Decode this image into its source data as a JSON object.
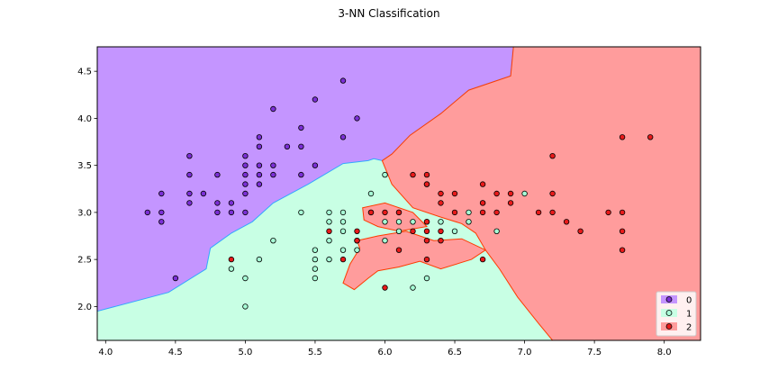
{
  "chart_data": {
    "type": "scatter",
    "title": "3-NN Classification",
    "xlabel": "",
    "ylabel": "",
    "xlim": [
      3.94,
      8.26
    ],
    "ylim": [
      1.64,
      4.76
    ],
    "xticks": [
      "4.0",
      "4.5",
      "5.0",
      "5.5",
      "6.0",
      "6.5",
      "7.0",
      "7.5",
      "8.0"
    ],
    "yticks": [
      "2.0",
      "2.5",
      "3.0",
      "3.5",
      "4.0",
      "4.5"
    ],
    "grid": false,
    "legend_position": "bottom-right",
    "regions": [
      {
        "class": "0",
        "color": "#c495ff",
        "boundary": [
          [
            3.94,
            4.76
          ],
          [
            6.92,
            4.76
          ],
          [
            6.9,
            4.45
          ],
          [
            6.6,
            4.3
          ],
          [
            6.4,
            4.05
          ],
          [
            6.18,
            3.82
          ],
          [
            6.05,
            3.62
          ],
          [
            5.98,
            3.55
          ],
          [
            5.92,
            3.57
          ],
          [
            5.88,
            3.55
          ],
          [
            5.7,
            3.52
          ],
          [
            5.45,
            3.3
          ],
          [
            5.2,
            3.1
          ],
          [
            5.05,
            2.9
          ],
          [
            4.9,
            2.78
          ],
          [
            4.75,
            2.62
          ],
          [
            4.72,
            2.4
          ],
          [
            4.45,
            2.15
          ],
          [
            3.94,
            1.95
          ]
        ]
      },
      {
        "class": "2",
        "color": "#ff9c9c",
        "boundary": [
          [
            6.92,
            4.76
          ],
          [
            8.26,
            4.76
          ],
          [
            8.26,
            1.64
          ],
          [
            7.2,
            1.64
          ],
          [
            7.1,
            1.82
          ],
          [
            6.95,
            2.1
          ],
          [
            6.82,
            2.4
          ],
          [
            6.72,
            2.6
          ],
          [
            6.65,
            2.78
          ],
          [
            6.55,
            2.88
          ],
          [
            6.4,
            2.95
          ],
          [
            6.2,
            3.05
          ],
          [
            6.05,
            3.3
          ],
          [
            5.98,
            3.55
          ],
          [
            6.05,
            3.62
          ],
          [
            6.18,
            3.82
          ],
          [
            6.4,
            4.05
          ],
          [
            6.6,
            4.3
          ],
          [
            6.9,
            4.45
          ]
        ]
      },
      {
        "class": "2",
        "color": "#ff9c9c",
        "boundary": [
          [
            5.8,
            2.7
          ],
          [
            5.95,
            2.75
          ],
          [
            6.15,
            2.8
          ],
          [
            6.35,
            2.7
          ],
          [
            6.55,
            2.72
          ],
          [
            6.72,
            2.6
          ],
          [
            6.62,
            2.5
          ],
          [
            6.4,
            2.4
          ],
          [
            6.25,
            2.48
          ],
          [
            6.1,
            2.42
          ],
          [
            5.95,
            2.38
          ],
          [
            5.88,
            2.3
          ],
          [
            5.78,
            2.18
          ],
          [
            5.7,
            2.25
          ],
          [
            5.75,
            2.45
          ],
          [
            5.82,
            2.62
          ]
        ]
      },
      {
        "class": "2",
        "color": "#ff9c9c",
        "boundary": [
          [
            5.84,
            3.05
          ],
          [
            6.0,
            3.1
          ],
          [
            6.2,
            3.0
          ],
          [
            6.3,
            2.85
          ],
          [
            6.1,
            2.8
          ],
          [
            5.95,
            2.85
          ],
          [
            5.85,
            2.92
          ]
        ]
      }
    ],
    "series": [
      {
        "name": "0",
        "color": "#7b2fd6",
        "points": [
          [
            4.3,
            3.0
          ],
          [
            4.4,
            3.2
          ],
          [
            4.4,
            3.0
          ],
          [
            4.4,
            2.9
          ],
          [
            4.5,
            2.3
          ],
          [
            4.6,
            3.6
          ],
          [
            4.6,
            3.4
          ],
          [
            4.6,
            3.2
          ],
          [
            4.6,
            3.1
          ],
          [
            4.7,
            3.2
          ],
          [
            4.8,
            3.4
          ],
          [
            4.8,
            3.1
          ],
          [
            4.8,
            3.0
          ],
          [
            4.9,
            3.1
          ],
          [
            4.9,
            3.0
          ],
          [
            5.0,
            3.6
          ],
          [
            5.0,
            3.5
          ],
          [
            5.0,
            3.4
          ],
          [
            5.0,
            3.3
          ],
          [
            5.0,
            3.2
          ],
          [
            5.0,
            3.0
          ],
          [
            5.1,
            3.8
          ],
          [
            5.1,
            3.7
          ],
          [
            5.1,
            3.5
          ],
          [
            5.1,
            3.4
          ],
          [
            5.1,
            3.3
          ],
          [
            5.2,
            4.1
          ],
          [
            5.2,
            3.5
          ],
          [
            5.2,
            3.4
          ],
          [
            5.3,
            3.7
          ],
          [
            5.4,
            3.9
          ],
          [
            5.4,
            3.7
          ],
          [
            5.4,
            3.4
          ],
          [
            5.5,
            4.2
          ],
          [
            5.5,
            3.5
          ],
          [
            5.7,
            4.4
          ],
          [
            5.7,
            3.8
          ],
          [
            5.8,
            4.0
          ]
        ]
      },
      {
        "name": "1",
        "color": "#a7ffd6",
        "points": [
          [
            4.9,
            2.4
          ],
          [
            5.0,
            2.3
          ],
          [
            5.0,
            2.0
          ],
          [
            5.1,
            2.5
          ],
          [
            5.2,
            2.7
          ],
          [
            5.4,
            3.0
          ],
          [
            5.5,
            2.6
          ],
          [
            5.5,
            2.5
          ],
          [
            5.5,
            2.4
          ],
          [
            5.5,
            2.3
          ],
          [
            5.6,
            3.0
          ],
          [
            5.6,
            2.9
          ],
          [
            5.6,
            2.7
          ],
          [
            5.6,
            2.5
          ],
          [
            5.7,
            3.0
          ],
          [
            5.7,
            2.9
          ],
          [
            5.7,
            2.8
          ],
          [
            5.7,
            2.6
          ],
          [
            5.8,
            2.7
          ],
          [
            5.8,
            2.6
          ],
          [
            5.9,
            3.2
          ],
          [
            5.9,
            3.0
          ],
          [
            6.0,
            3.4
          ],
          [
            6.0,
            2.9
          ],
          [
            6.0,
            2.7
          ],
          [
            6.1,
            3.0
          ],
          [
            6.1,
            2.9
          ],
          [
            6.1,
            2.8
          ],
          [
            6.2,
            2.9
          ],
          [
            6.2,
            2.2
          ],
          [
            6.3,
            3.3
          ],
          [
            6.3,
            2.9
          ],
          [
            6.3,
            2.3
          ],
          [
            6.4,
            2.9
          ],
          [
            6.5,
            2.8
          ],
          [
            6.6,
            3.0
          ],
          [
            6.6,
            2.9
          ],
          [
            6.7,
            3.1
          ],
          [
            6.8,
            2.8
          ],
          [
            7.0,
            3.2
          ]
        ]
      },
      {
        "name": "2",
        "color": "#e81a1a",
        "points": [
          [
            4.9,
            2.5
          ],
          [
            5.6,
            2.8
          ],
          [
            5.7,
            2.5
          ],
          [
            5.8,
            2.8
          ],
          [
            5.8,
            2.7
          ],
          [
            5.9,
            3.0
          ],
          [
            6.0,
            3.0
          ],
          [
            6.0,
            2.2
          ],
          [
            6.1,
            3.0
          ],
          [
            6.1,
            2.6
          ],
          [
            6.2,
            3.4
          ],
          [
            6.2,
            2.8
          ],
          [
            6.3,
            3.4
          ],
          [
            6.3,
            3.3
          ],
          [
            6.3,
            2.9
          ],
          [
            6.3,
            2.8
          ],
          [
            6.3,
            2.7
          ],
          [
            6.3,
            2.5
          ],
          [
            6.4,
            3.2
          ],
          [
            6.4,
            3.1
          ],
          [
            6.4,
            2.8
          ],
          [
            6.4,
            2.7
          ],
          [
            6.5,
            3.2
          ],
          [
            6.5,
            3.0
          ],
          [
            6.7,
            3.3
          ],
          [
            6.7,
            3.1
          ],
          [
            6.7,
            3.0
          ],
          [
            6.7,
            2.5
          ],
          [
            6.8,
            3.2
          ],
          [
            6.8,
            3.0
          ],
          [
            6.9,
            3.2
          ],
          [
            6.9,
            3.1
          ],
          [
            7.1,
            3.0
          ],
          [
            7.2,
            3.6
          ],
          [
            7.2,
            3.2
          ],
          [
            7.2,
            3.0
          ],
          [
            7.3,
            2.9
          ],
          [
            7.4,
            2.8
          ],
          [
            7.6,
            3.0
          ],
          [
            7.7,
            3.8
          ],
          [
            7.7,
            3.0
          ],
          [
            7.7,
            2.8
          ],
          [
            7.7,
            2.6
          ],
          [
            7.9,
            3.8
          ]
        ]
      }
    ],
    "legend": [
      {
        "label": "0",
        "color": "#7b2fd6",
        "patch": "#c495ff"
      },
      {
        "label": "1",
        "color": "#a7ffd6",
        "patch": "#c8ffe4"
      },
      {
        "label": "2",
        "color": "#e81a1a",
        "patch": "#ff9c9c"
      }
    ],
    "background_class_color": "#c8ffe4"
  }
}
